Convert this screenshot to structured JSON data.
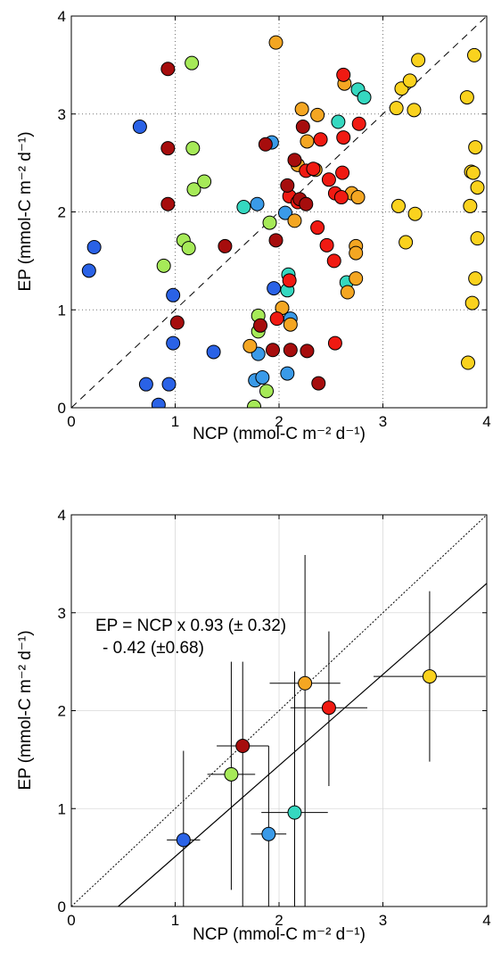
{
  "chart_data": [
    {
      "type": "scatter",
      "xlabel": "NCP (mmol-C m⁻² d⁻¹)",
      "ylabel": "EP (mmol-C m⁻² d⁻¹)",
      "xlim": [
        0,
        4
      ],
      "ylim": [
        0,
        4
      ],
      "xticks": [
        "0",
        "1",
        "2",
        "3",
        "4"
      ],
      "yticks": [
        "0",
        "1",
        "2",
        "3",
        "4"
      ],
      "grid": "dotted",
      "reference_line": "1:1 dashed",
      "points": [
        {
          "x": 0.17,
          "y": 1.4,
          "color": "#2a62e6"
        },
        {
          "x": 0.22,
          "y": 1.64,
          "color": "#2a62e6"
        },
        {
          "x": 0.66,
          "y": 2.87,
          "color": "#2a62e6"
        },
        {
          "x": 0.72,
          "y": 0.24,
          "color": "#2a62e6"
        },
        {
          "x": 0.84,
          "y": 0.03,
          "color": "#2a62e6"
        },
        {
          "x": 0.94,
          "y": 0.24,
          "color": "#2a62e6"
        },
        {
          "x": 0.98,
          "y": 1.15,
          "color": "#2a62e6"
        },
        {
          "x": 0.98,
          "y": 0.66,
          "color": "#2a62e6"
        },
        {
          "x": 1.37,
          "y": 0.57,
          "color": "#2a62e6"
        },
        {
          "x": 1.95,
          "y": 1.22,
          "color": "#2a62e6"
        },
        {
          "x": 1.77,
          "y": 0.28,
          "color": "#3a9ae8"
        },
        {
          "x": 1.84,
          "y": 0.31,
          "color": "#3a9ae8"
        },
        {
          "x": 1.8,
          "y": 0.55,
          "color": "#3a9ae8"
        },
        {
          "x": 1.79,
          "y": 2.08,
          "color": "#3a9ae8"
        },
        {
          "x": 1.93,
          "y": 2.71,
          "color": "#3a9ae8"
        },
        {
          "x": 2.08,
          "y": 0.35,
          "color": "#3a9ae8"
        },
        {
          "x": 2.11,
          "y": 0.91,
          "color": "#3a9ae8"
        },
        {
          "x": 2.06,
          "y": 1.99,
          "color": "#3a9ae8"
        },
        {
          "x": 1.66,
          "y": 2.05,
          "color": "#35d8c0"
        },
        {
          "x": 2.08,
          "y": 1.2,
          "color": "#35d8c0"
        },
        {
          "x": 2.09,
          "y": 1.36,
          "color": "#35d8c0"
        },
        {
          "x": 2.57,
          "y": 2.92,
          "color": "#35d8c0"
        },
        {
          "x": 2.65,
          "y": 1.28,
          "color": "#35d8c0"
        },
        {
          "x": 2.76,
          "y": 3.25,
          "color": "#35d8c0"
        },
        {
          "x": 2.82,
          "y": 3.17,
          "color": "#35d8c0"
        },
        {
          "x": 0.89,
          "y": 1.45,
          "color": "#a6ea58"
        },
        {
          "x": 1.16,
          "y": 3.52,
          "color": "#a6ea58"
        },
        {
          "x": 1.17,
          "y": 2.65,
          "color": "#a6ea58"
        },
        {
          "x": 1.18,
          "y": 2.23,
          "color": "#a6ea58"
        },
        {
          "x": 1.28,
          "y": 2.31,
          "color": "#a6ea58"
        },
        {
          "x": 1.08,
          "y": 1.71,
          "color": "#a6ea58"
        },
        {
          "x": 1.13,
          "y": 1.63,
          "color": "#a6ea58"
        },
        {
          "x": 1.76,
          "y": 0.01,
          "color": "#a6ea58"
        },
        {
          "x": 1.8,
          "y": 0.78,
          "color": "#a6ea58"
        },
        {
          "x": 1.8,
          "y": 0.94,
          "color": "#a6ea58"
        },
        {
          "x": 1.88,
          "y": 0.17,
          "color": "#a6ea58"
        },
        {
          "x": 1.91,
          "y": 1.89,
          "color": "#a6ea58"
        },
        {
          "x": 2.03,
          "y": 1.02,
          "color": "#f4a622"
        },
        {
          "x": 2.11,
          "y": 0.85,
          "color": "#f4a622"
        },
        {
          "x": 2.15,
          "y": 1.91,
          "color": "#f4a622"
        },
        {
          "x": 2.18,
          "y": 2.48,
          "color": "#f4a622"
        },
        {
          "x": 2.22,
          "y": 3.05,
          "color": "#f4a622"
        },
        {
          "x": 2.27,
          "y": 2.72,
          "color": "#f4a622"
        },
        {
          "x": 2.35,
          "y": 2.43,
          "color": "#f4a622"
        },
        {
          "x": 2.37,
          "y": 2.99,
          "color": "#f4a622"
        },
        {
          "x": 2.63,
          "y": 3.31,
          "color": "#f4a622"
        },
        {
          "x": 2.66,
          "y": 1.18,
          "color": "#f4a622"
        },
        {
          "x": 2.7,
          "y": 2.19,
          "color": "#f4a622"
        },
        {
          "x": 2.74,
          "y": 1.65,
          "color": "#f4a622"
        },
        {
          "x": 2.74,
          "y": 1.58,
          "color": "#f4a622"
        },
        {
          "x": 2.74,
          "y": 1.32,
          "color": "#f4a622"
        },
        {
          "x": 2.76,
          "y": 2.15,
          "color": "#f4a622"
        },
        {
          "x": 1.72,
          "y": 0.63,
          "color": "#f4a622"
        },
        {
          "x": 1.97,
          "y": 3.73,
          "color": "#f4a622"
        },
        {
          "x": 1.98,
          "y": 0.91,
          "color": "#f01a12"
        },
        {
          "x": 2.1,
          "y": 1.3,
          "color": "#f01a12"
        },
        {
          "x": 2.1,
          "y": 2.16,
          "color": "#f01a12"
        },
        {
          "x": 2.18,
          "y": 2.1,
          "color": "#f01a12"
        },
        {
          "x": 2.26,
          "y": 2.42,
          "color": "#f01a12"
        },
        {
          "x": 2.33,
          "y": 2.44,
          "color": "#f01a12"
        },
        {
          "x": 2.37,
          "y": 1.84,
          "color": "#f01a12"
        },
        {
          "x": 2.4,
          "y": 2.74,
          "color": "#f01a12"
        },
        {
          "x": 2.46,
          "y": 1.66,
          "color": "#f01a12"
        },
        {
          "x": 2.48,
          "y": 2.33,
          "color": "#f01a12"
        },
        {
          "x": 2.53,
          "y": 1.5,
          "color": "#f01a12"
        },
        {
          "x": 2.54,
          "y": 0.66,
          "color": "#f01a12"
        },
        {
          "x": 2.54,
          "y": 2.19,
          "color": "#f01a12"
        },
        {
          "x": 2.6,
          "y": 2.15,
          "color": "#f01a12"
        },
        {
          "x": 2.61,
          "y": 2.4,
          "color": "#f01a12"
        },
        {
          "x": 2.62,
          "y": 2.76,
          "color": "#f01a12"
        },
        {
          "x": 2.62,
          "y": 3.4,
          "color": "#f01a12"
        },
        {
          "x": 2.77,
          "y": 2.9,
          "color": "#f01a12"
        },
        {
          "x": 0.93,
          "y": 3.46,
          "color": "#a60d0d"
        },
        {
          "x": 0.93,
          "y": 2.65,
          "color": "#a60d0d"
        },
        {
          "x": 0.93,
          "y": 2.08,
          "color": "#a60d0d"
        },
        {
          "x": 1.02,
          "y": 0.87,
          "color": "#a60d0d"
        },
        {
          "x": 1.48,
          "y": 1.65,
          "color": "#a60d0d"
        },
        {
          "x": 1.82,
          "y": 0.84,
          "color": "#a60d0d"
        },
        {
          "x": 1.87,
          "y": 2.69,
          "color": "#a60d0d"
        },
        {
          "x": 1.94,
          "y": 0.59,
          "color": "#a60d0d"
        },
        {
          "x": 1.97,
          "y": 1.71,
          "color": "#a60d0d"
        },
        {
          "x": 2.08,
          "y": 2.27,
          "color": "#a60d0d"
        },
        {
          "x": 2.11,
          "y": 0.59,
          "color": "#a60d0d"
        },
        {
          "x": 2.15,
          "y": 2.53,
          "color": "#a60d0d"
        },
        {
          "x": 2.2,
          "y": 2.13,
          "color": "#a60d0d"
        },
        {
          "x": 2.23,
          "y": 2.87,
          "color": "#a60d0d"
        },
        {
          "x": 2.26,
          "y": 2.08,
          "color": "#a60d0d"
        },
        {
          "x": 2.27,
          "y": 0.58,
          "color": "#a60d0d"
        },
        {
          "x": 2.38,
          "y": 0.25,
          "color": "#a60d0d"
        },
        {
          "x": 3.13,
          "y": 3.06,
          "color": "#fad21e"
        },
        {
          "x": 3.15,
          "y": 2.06,
          "color": "#fad21e"
        },
        {
          "x": 3.18,
          "y": 3.26,
          "color": "#fad21e"
        },
        {
          "x": 3.22,
          "y": 1.69,
          "color": "#fad21e"
        },
        {
          "x": 3.26,
          "y": 3.34,
          "color": "#fad21e"
        },
        {
          "x": 3.3,
          "y": 3.04,
          "color": "#fad21e"
        },
        {
          "x": 3.31,
          "y": 1.98,
          "color": "#fad21e"
        },
        {
          "x": 3.34,
          "y": 3.55,
          "color": "#fad21e"
        },
        {
          "x": 3.81,
          "y": 3.17,
          "color": "#fad21e"
        },
        {
          "x": 3.82,
          "y": 0.46,
          "color": "#fad21e"
        },
        {
          "x": 3.84,
          "y": 2.06,
          "color": "#fad21e"
        },
        {
          "x": 3.85,
          "y": 2.41,
          "color": "#fad21e"
        },
        {
          "x": 3.86,
          "y": 1.07,
          "color": "#fad21e"
        },
        {
          "x": 3.87,
          "y": 2.4,
          "color": "#fad21e"
        },
        {
          "x": 3.88,
          "y": 3.6,
          "color": "#fad21e"
        },
        {
          "x": 3.89,
          "y": 2.66,
          "color": "#fad21e"
        },
        {
          "x": 3.89,
          "y": 1.32,
          "color": "#fad21e"
        },
        {
          "x": 3.91,
          "y": 1.73,
          "color": "#fad21e"
        },
        {
          "x": 3.91,
          "y": 2.25,
          "color": "#fad21e"
        }
      ]
    },
    {
      "type": "scatter",
      "xlabel": "NCP (mmol-C m⁻² d⁻¹)",
      "ylabel": "EP (mmol-C m⁻² d⁻¹)",
      "xlim": [
        0,
        4
      ],
      "ylim": [
        0,
        4
      ],
      "xticks": [
        "0",
        "1",
        "2",
        "3",
        "4"
      ],
      "yticks": [
        "0",
        "1",
        "2",
        "3",
        "4"
      ],
      "grid": "solid light",
      "reference_line": "1:1 dotted",
      "fit": {
        "slope": 0.93,
        "intercept": -0.42
      },
      "annotation_line1": "EP = NCP x 0.93 (± 0.32)",
      "annotation_line2": "- 0.42 (±0.68)",
      "points": [
        {
          "x": 1.08,
          "y": 0.68,
          "xerr": 0.16,
          "yerr_low": 0.68,
          "yerr_high": 0.91,
          "color": "#2a62e6"
        },
        {
          "x": 1.9,
          "y": 0.74,
          "xerr": 0.17,
          "yerr_low": 0.74,
          "yerr_high": 0.9,
          "color": "#3a9ae8"
        },
        {
          "x": 2.15,
          "y": 0.96,
          "xerr": 0.32,
          "yerr_low": 0.96,
          "yerr_high": 1.44,
          "color": "#35d8c0"
        },
        {
          "x": 1.54,
          "y": 1.35,
          "xerr": 0.23,
          "yerr_low": 1.18,
          "yerr_high": 1.15,
          "color": "#a6ea58"
        },
        {
          "x": 1.65,
          "y": 1.64,
          "xerr": 0.25,
          "yerr_low": 1.64,
          "yerr_high": 0.86,
          "color": "#a60d0d"
        },
        {
          "x": 2.25,
          "y": 2.28,
          "xerr": 0.34,
          "yerr_low": 2.28,
          "yerr_high": 1.31,
          "color": "#f4a622"
        },
        {
          "x": 2.48,
          "y": 2.03,
          "xerr": 0.37,
          "yerr_low": 0.8,
          "yerr_high": 0.78,
          "color": "#f01a12"
        },
        {
          "x": 3.45,
          "y": 2.35,
          "xerr": 0.54,
          "yerr_low": 0.87,
          "yerr_high": 0.87,
          "color": "#fad21e"
        }
      ]
    }
  ]
}
